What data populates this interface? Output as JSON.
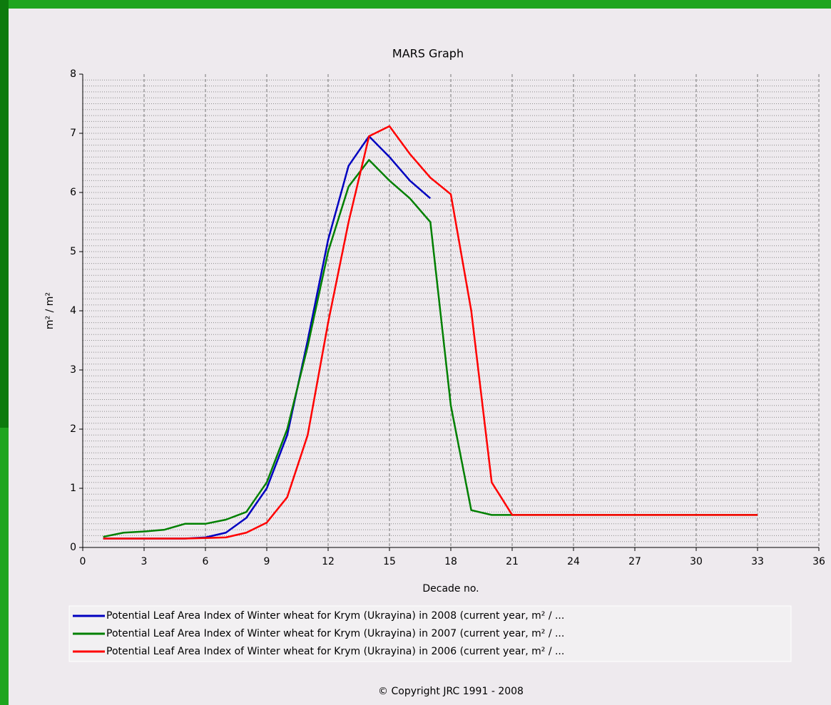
{
  "chart_data": {
    "type": "line",
    "title": "MARS Graph",
    "x_label": "Decade no.",
    "y_label": "m² / m²",
    "footer": "© Copyright JRC 1991 - 2008",
    "xlim": [
      0,
      36
    ],
    "xticks": [
      0,
      3,
      6,
      9,
      12,
      15,
      18,
      21,
      24,
      27,
      30,
      33,
      36
    ],
    "ylim": [
      0,
      8
    ],
    "yticks": [
      0,
      1,
      2,
      3,
      4,
      5,
      6,
      7,
      8
    ],
    "grid": true,
    "y_minor_grid": 0.1,
    "legend": "bottom",
    "series": [
      {
        "name": "Potential Leaf Area Index of Winter wheat for Krym (Ukrayina) in 2008 (current year, m² / ...",
        "color": "#0000c0",
        "x": [
          1,
          2,
          3,
          4,
          5,
          6,
          7,
          8,
          9,
          10,
          11,
          12,
          13,
          14,
          15,
          16,
          17
        ],
        "values": [
          0.15,
          0.15,
          0.15,
          0.15,
          0.15,
          0.17,
          0.25,
          0.5,
          1.0,
          1.9,
          3.5,
          5.2,
          6.45,
          6.95,
          6.6,
          6.2,
          5.9
        ]
      },
      {
        "name": "Potential Leaf Area Index of Winter wheat for Krym (Ukrayina) in 2007 (current year, m² / ...",
        "color": "#008000",
        "x": [
          1,
          2,
          3,
          4,
          5,
          6,
          7,
          8,
          9,
          10,
          11,
          12,
          13,
          14,
          15,
          16,
          17,
          18,
          19,
          20,
          21,
          22,
          23,
          24,
          25,
          26,
          27,
          28,
          29,
          30,
          31,
          32,
          33
        ],
        "values": [
          0.18,
          0.25,
          0.27,
          0.3,
          0.4,
          0.4,
          0.47,
          0.6,
          1.1,
          2.0,
          3.4,
          5.0,
          6.1,
          6.55,
          6.2,
          5.9,
          5.5,
          2.4,
          0.63,
          0.55,
          0.55,
          0.55,
          0.55,
          0.55,
          0.55,
          0.55,
          0.55,
          0.55,
          0.55,
          0.55,
          0.55,
          0.55,
          0.55
        ]
      },
      {
        "name": "Potential Leaf Area Index of Winter wheat for Krym (Ukrayina) in 2006 (current year, m² / ...",
        "color": "#ff0000",
        "x": [
          1,
          2,
          3,
          4,
          5,
          6,
          7,
          8,
          9,
          10,
          11,
          12,
          13,
          14,
          15,
          16,
          17,
          18,
          19,
          20,
          21,
          22,
          23,
          24,
          25,
          26,
          27,
          28,
          29,
          30,
          31,
          32,
          33
        ],
        "values": [
          0.15,
          0.15,
          0.15,
          0.15,
          0.15,
          0.16,
          0.17,
          0.25,
          0.42,
          0.85,
          1.9,
          3.8,
          5.5,
          6.95,
          7.12,
          6.65,
          6.25,
          5.97,
          4.0,
          1.1,
          0.55,
          0.55,
          0.55,
          0.55,
          0.55,
          0.55,
          0.55,
          0.55,
          0.55,
          0.55,
          0.55,
          0.55,
          0.55
        ]
      }
    ]
  }
}
